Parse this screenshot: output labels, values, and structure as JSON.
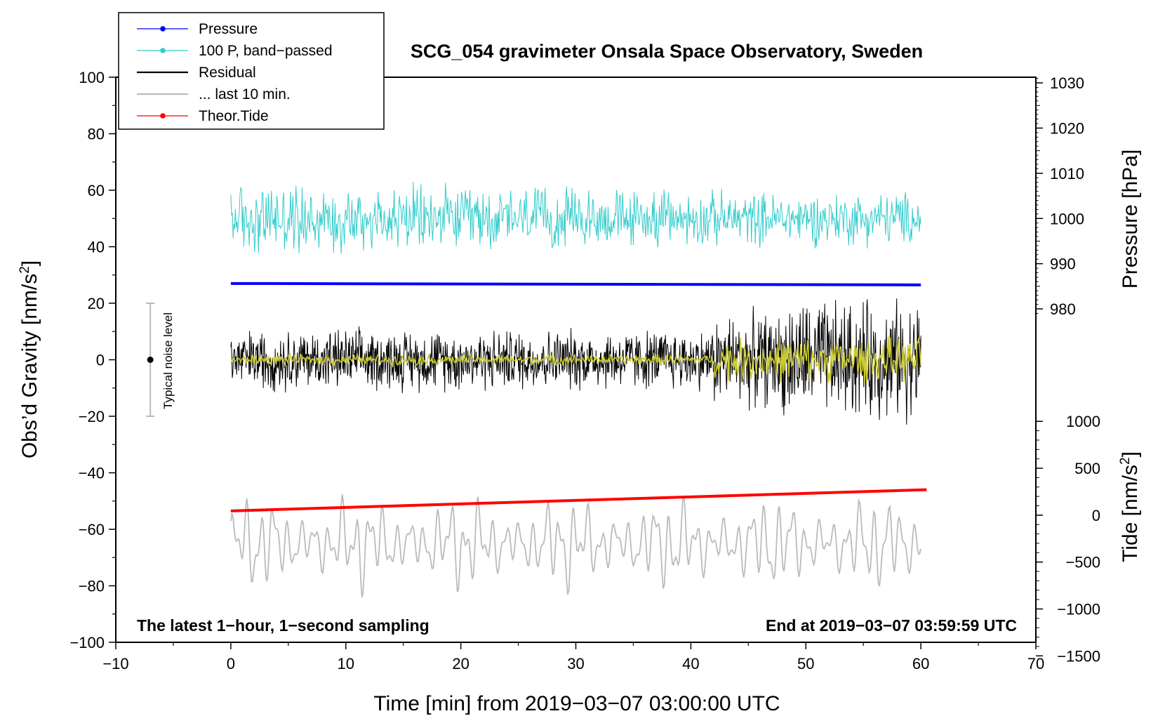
{
  "chart_data": {
    "type": "line",
    "title": "SCG_054 gravimeter Onsala Space Observatory, Sweden",
    "xlabel": "Time [min] from 2019−03−07 03:00:00 UTC",
    "ylabel_left": "Obs’d Gravity [nm/s",
    "ylabel_left_sup": "2",
    "ylabel_left_end": "]",
    "ylabel_right_pressure": "Pressure [hPa]",
    "ylabel_right_tide": "Tide [nm/s",
    "ylabel_right_tide_sup": "2",
    "ylabel_right_tide_end": "]",
    "xlim": [
      -10,
      70
    ],
    "ylim": [
      -100,
      100
    ],
    "xticks": [
      "−10",
      "0",
      "10",
      "20",
      "30",
      "40",
      "50",
      "60",
      "70"
    ],
    "yticks": [
      "100",
      "80",
      "60",
      "40",
      "20",
      "0",
      "−20",
      "−40",
      "−60",
      "−80",
      "−100"
    ],
    "pressure_ticks": [
      "1030",
      "1020",
      "1010",
      "1000",
      "990",
      "980"
    ],
    "tide_ticks": [
      "1000",
      "500",
      "0",
      "−500",
      "−1000",
      "−1500"
    ],
    "note_left": "The latest 1−hour, 1−second sampling",
    "note_right": "End at 2019−03−07 03:59:59 UTC",
    "noise_label": "Typical noise level",
    "noise_range": [
      -20,
      20
    ],
    "noise_x": -7,
    "legend": [
      {
        "label": "Pressure",
        "color": "#0000ff",
        "marker": true
      },
      {
        "label": "100 P, band−passed",
        "color": "#33cccc",
        "marker": true
      },
      {
        "label": "Residual",
        "color": "#000000",
        "marker": false
      },
      {
        "label": "... last 10 min.",
        "color": "#bbbbbb",
        "marker": false
      },
      {
        "label": "Theor.Tide",
        "color": "#ff0000",
        "marker": true
      }
    ],
    "series": [
      {
        "name": "Pressure",
        "color": "#0000ff",
        "axis": "gravity",
        "x": [
          0,
          60
        ],
        "y": [
          27,
          26.5
        ]
      },
      {
        "name": "100 P, band−passed",
        "color": "#33cccc",
        "axis": "gravity",
        "center": 50,
        "amplitude": 10,
        "x_range": [
          0,
          60
        ]
      },
      {
        "name": "Residual",
        "color": "#000000",
        "axis": "gravity",
        "center": 0,
        "amplitude": 12,
        "x_range": [
          0,
          60
        ]
      },
      {
        "name": "Residual (smoothed)",
        "color": "#cccc33",
        "axis": "gravity",
        "center": 0,
        "amplitude": 3,
        "x_range": [
          0,
          60
        ]
      },
      {
        "name": "... last 10 min.",
        "color": "#bbbbbb",
        "axis": "gravity",
        "center": -65,
        "amplitude": 12,
        "x_range": [
          0,
          60
        ]
      },
      {
        "name": "Theor.Tide",
        "color": "#ff0000",
        "axis": "gravity",
        "x": [
          0,
          60.5
        ],
        "y": [
          -53.5,
          -46
        ]
      }
    ]
  }
}
